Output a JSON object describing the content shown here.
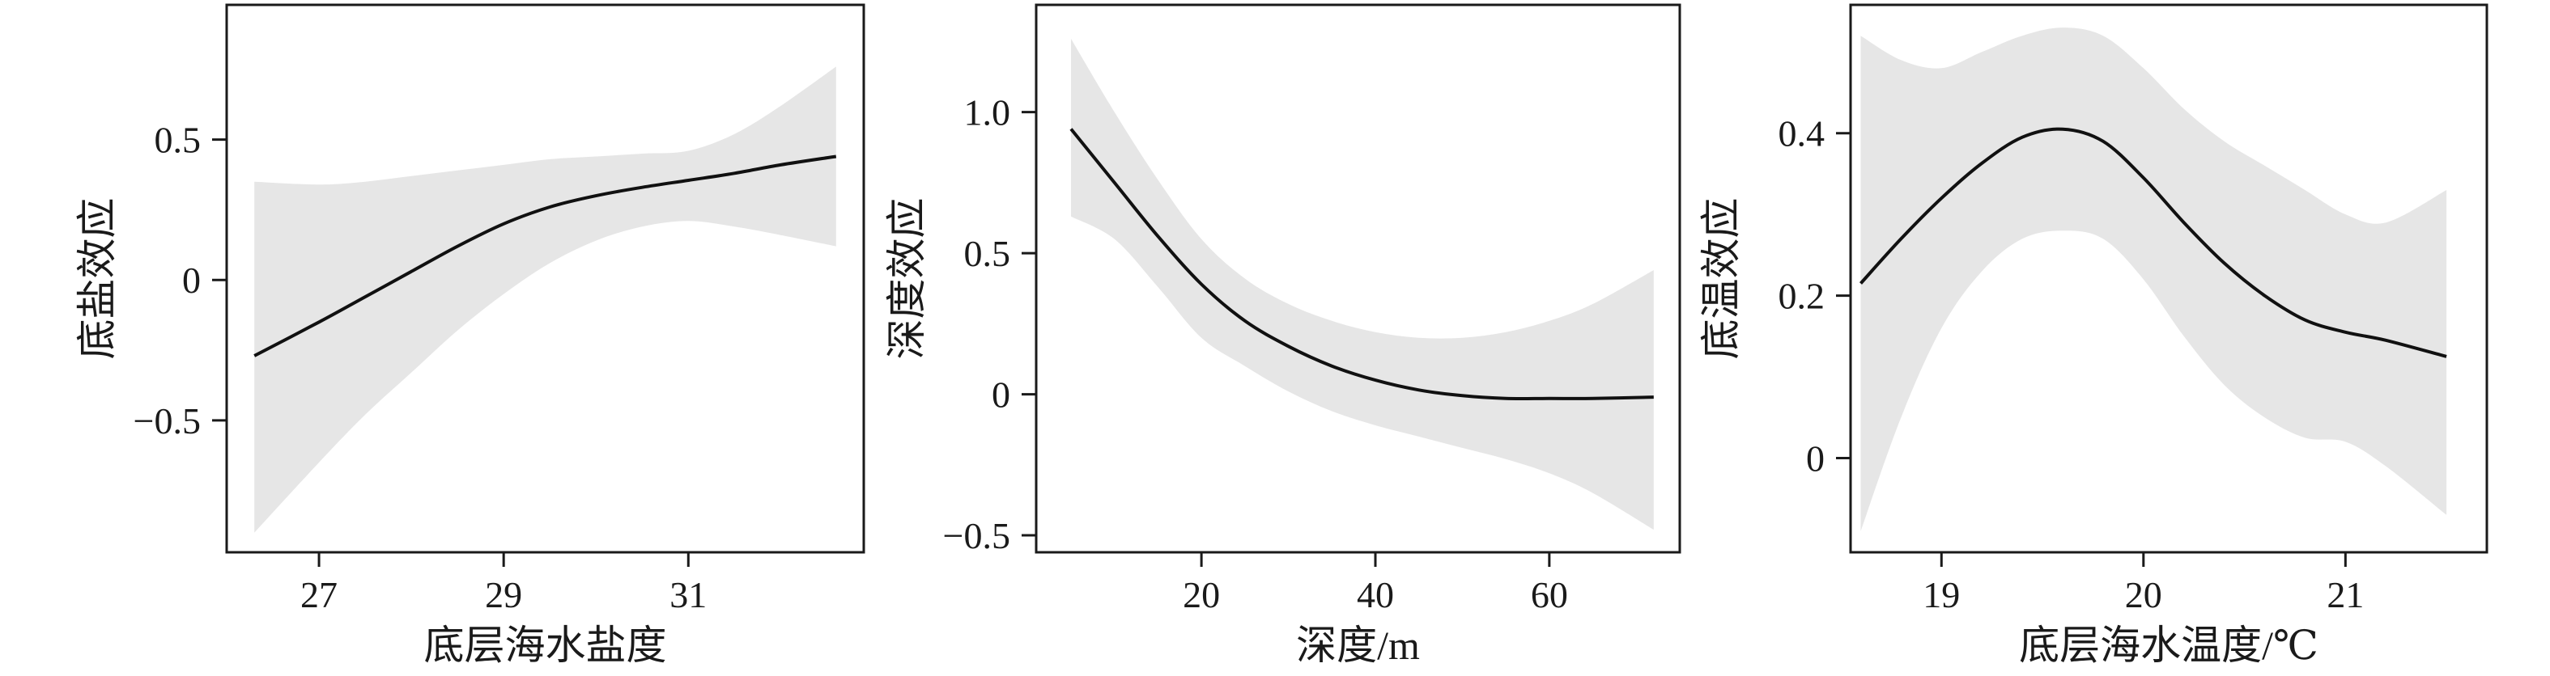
{
  "chart_data": [
    {
      "type": "line",
      "xlabel": "底层海水盐度",
      "ylabel": "底盐效应",
      "xlim": [
        26.0,
        32.9
      ],
      "ylim": [
        -0.97,
        0.98
      ],
      "xticks": [
        27,
        29,
        31
      ],
      "xtick_labels": [
        "27",
        "29",
        "31"
      ],
      "yticks": [
        0.5,
        0,
        -0.5
      ],
      "ytick_labels": [
        "0.5",
        "0",
        "−0.5"
      ],
      "grid": false,
      "series": [
        {
          "x": [
            26.3,
            27.0,
            27.5,
            28.0,
            28.5,
            29.0,
            29.5,
            30.0,
            30.5,
            31.0,
            31.5,
            32.0,
            32.6
          ],
          "values": [
            -0.27,
            -0.15,
            -0.06,
            0.03,
            0.12,
            0.2,
            0.26,
            0.3,
            0.33,
            0.355,
            0.38,
            0.41,
            0.44
          ],
          "upper": [
            0.35,
            0.34,
            0.35,
            0.37,
            0.39,
            0.41,
            0.43,
            0.44,
            0.45,
            0.46,
            0.52,
            0.62,
            0.76
          ],
          "lower": [
            -0.9,
            -0.65,
            -0.48,
            -0.33,
            -0.18,
            -0.05,
            0.06,
            0.14,
            0.19,
            0.21,
            0.19,
            0.16,
            0.12
          ]
        }
      ]
    },
    {
      "type": "line",
      "xlabel": "深度/m",
      "ylabel": "深度效应",
      "xlim": [
        1,
        75
      ],
      "ylim": [
        -0.56,
        1.38
      ],
      "xticks": [
        20,
        40,
        60
      ],
      "xtick_labels": [
        "20",
        "40",
        "60"
      ],
      "yticks": [
        1.0,
        0.5,
        0,
        -0.5
      ],
      "ytick_labels": [
        "1.0",
        "0.5",
        "0",
        "−0.5"
      ],
      "grid": false,
      "series": [
        {
          "x": [
            5,
            10,
            15,
            20,
            25,
            30,
            35,
            40,
            45,
            50,
            55,
            60,
            65,
            72
          ],
          "values": [
            0.94,
            0.75,
            0.56,
            0.39,
            0.26,
            0.17,
            0.1,
            0.05,
            0.015,
            -0.005,
            -0.015,
            -0.015,
            -0.015,
            -0.01
          ],
          "upper": [
            1.26,
            1.0,
            0.76,
            0.55,
            0.41,
            0.32,
            0.26,
            0.22,
            0.2,
            0.2,
            0.22,
            0.26,
            0.32,
            0.44
          ],
          "lower": [
            0.63,
            0.55,
            0.38,
            0.2,
            0.1,
            0.01,
            -0.06,
            -0.11,
            -0.15,
            -0.19,
            -0.23,
            -0.28,
            -0.35,
            -0.48
          ]
        }
      ]
    },
    {
      "type": "line",
      "xlabel": "底层海水温度/℃",
      "ylabel": "底温效应",
      "xlim": [
        18.55,
        21.7
      ],
      "ylim": [
        -0.116,
        0.558
      ],
      "xticks": [
        19,
        20,
        21
      ],
      "xtick_labels": [
        "19",
        "20",
        "21"
      ],
      "yticks": [
        0.4,
        0.2,
        0
      ],
      "ytick_labels": [
        "0.4",
        "0.2",
        "0"
      ],
      "grid": false,
      "series": [
        {
          "x": [
            18.6,
            18.8,
            19.0,
            19.2,
            19.4,
            19.6,
            19.8,
            20.0,
            20.2,
            20.4,
            20.6,
            20.8,
            21.0,
            21.2,
            21.5
          ],
          "values": [
            0.215,
            0.27,
            0.32,
            0.363,
            0.395,
            0.405,
            0.39,
            0.345,
            0.29,
            0.24,
            0.2,
            0.17,
            0.155,
            0.145,
            0.125
          ],
          "upper": [
            0.52,
            0.49,
            0.48,
            0.5,
            0.52,
            0.53,
            0.52,
            0.48,
            0.43,
            0.39,
            0.36,
            0.33,
            0.3,
            0.29,
            0.33
          ],
          "lower": [
            -0.09,
            0.05,
            0.16,
            0.23,
            0.27,
            0.28,
            0.27,
            0.22,
            0.15,
            0.09,
            0.05,
            0.025,
            0.02,
            -0.01,
            -0.07
          ]
        }
      ]
    }
  ]
}
